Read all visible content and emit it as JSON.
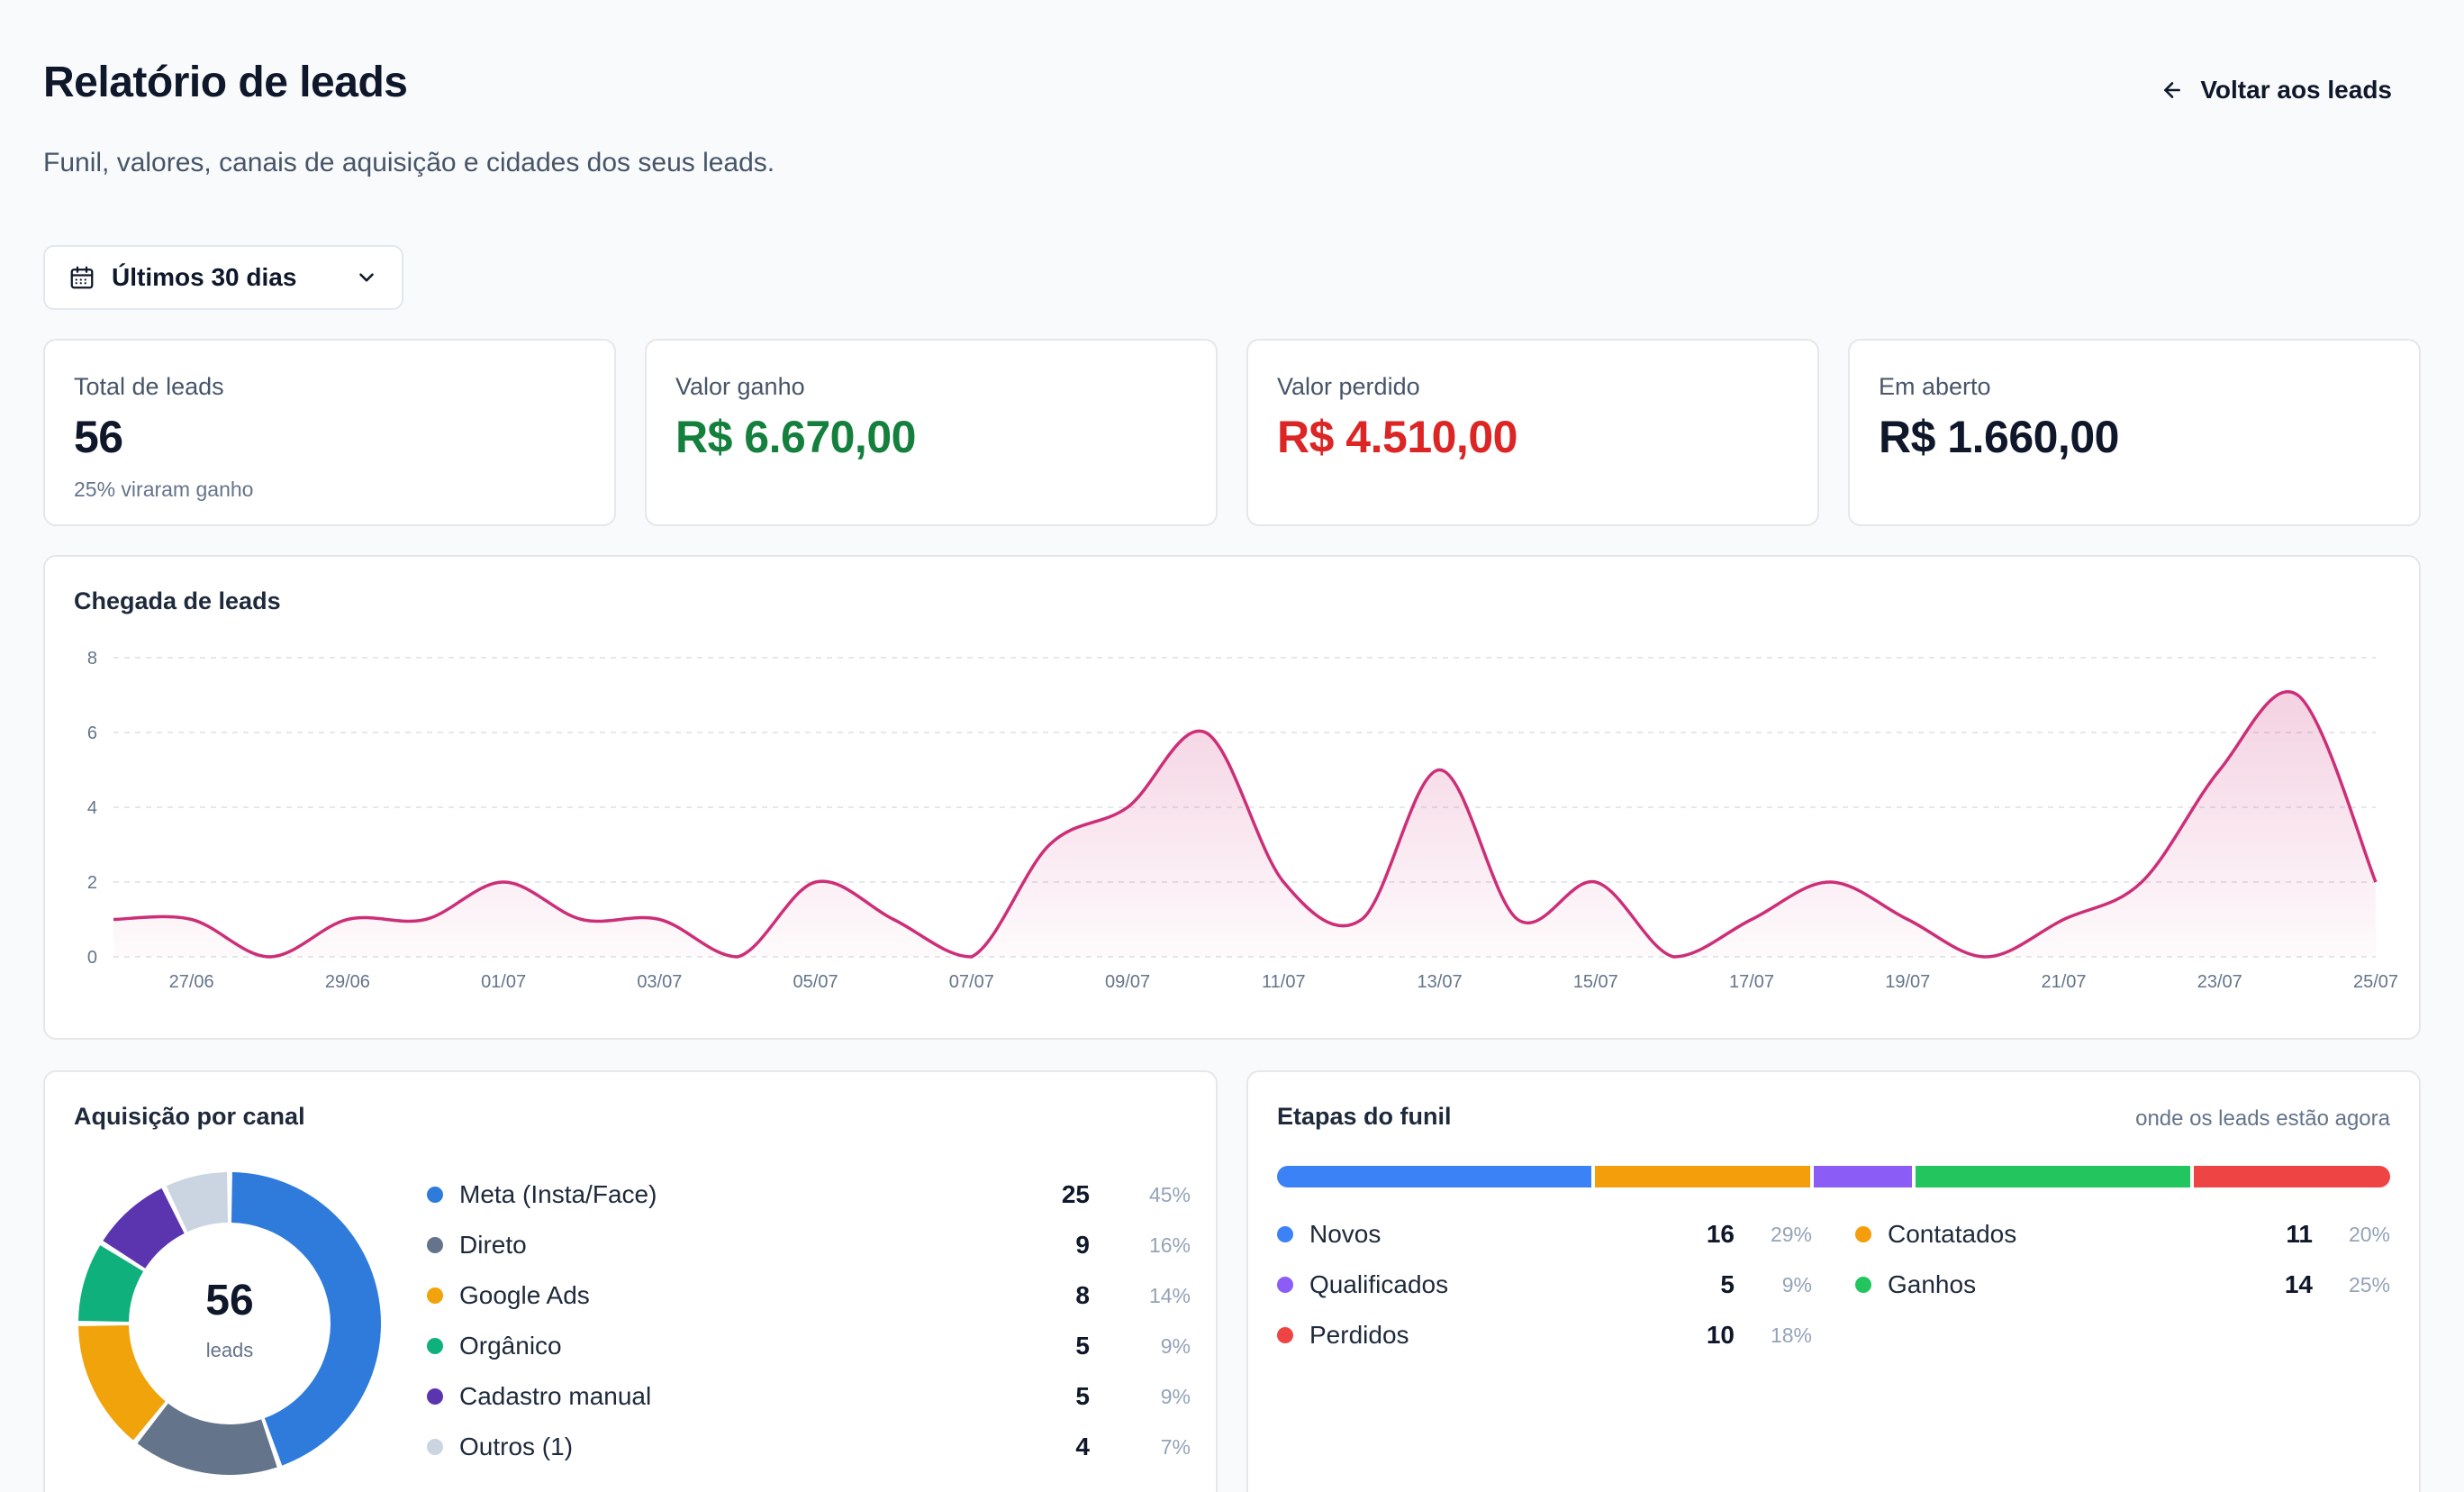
{
  "header": {
    "title": "Relatório de leads",
    "subtitle": "Funil, valores, canais de aquisição e cidades dos seus leads.",
    "back_label": "Voltar aos leads"
  },
  "filters": {
    "period_label": "Últimos 30 dias"
  },
  "kpis": [
    {
      "label": "Total de leads",
      "value": "56",
      "note": "25% viraram ganho",
      "color": "#0f172a"
    },
    {
      "label": "Valor ganho",
      "value": "R$ 6.670,00",
      "color": "#15803d"
    },
    {
      "label": "Valor perdido",
      "value": "R$ 4.510,00",
      "color": "#dc2626"
    },
    {
      "label": "Em aberto",
      "value": "R$ 1.660,00",
      "color": "#0f172a"
    }
  ],
  "arrivals": {
    "title": "Chegada de leads",
    "chart_data": {
      "type": "area",
      "x": [
        "26/06",
        "27/06",
        "28/06",
        "29/06",
        "30/06",
        "01/07",
        "02/07",
        "03/07",
        "04/07",
        "05/07",
        "06/07",
        "07/07",
        "08/07",
        "09/07",
        "10/07",
        "11/07",
        "12/07",
        "13/07",
        "14/07",
        "15/07",
        "16/07",
        "17/07",
        "18/07",
        "19/07",
        "20/07",
        "21/07",
        "22/07",
        "23/07",
        "24/07",
        "25/07"
      ],
      "values": [
        1,
        1,
        0,
        1,
        1,
        2,
        1,
        1,
        0,
        2,
        1,
        0,
        3,
        4,
        6,
        2,
        1,
        5,
        1,
        2,
        0,
        1,
        2,
        1,
        0,
        1,
        2,
        5,
        7,
        2
      ],
      "x_tick_labels": [
        "27/06",
        "29/06",
        "01/07",
        "03/07",
        "05/07",
        "07/07",
        "09/07",
        "11/07",
        "13/07",
        "15/07",
        "17/07",
        "19/07",
        "21/07",
        "23/07",
        "25/07"
      ],
      "y_ticks": [
        0,
        2,
        4,
        6,
        8
      ],
      "ylim": [
        0,
        8
      ],
      "grid": true,
      "line_color": "#cc2f78"
    }
  },
  "channels": {
    "title": "Aquisição por canal",
    "total": "56",
    "total_unit": "leads",
    "items": [
      {
        "name": "Meta (Insta/Face)",
        "count": "25",
        "pct": "45%",
        "color": "#2f7bdc"
      },
      {
        "name": "Direto",
        "count": "9",
        "pct": "16%",
        "color": "#64748b"
      },
      {
        "name": "Google Ads",
        "count": "8",
        "pct": "14%",
        "color": "#f0a30a"
      },
      {
        "name": "Orgânico",
        "count": "5",
        "pct": "9%",
        "color": "#10b07c"
      },
      {
        "name": "Cadastro manual",
        "count": "5",
        "pct": "9%",
        "color": "#5b35b0"
      },
      {
        "name": "Outros (1)",
        "count": "4",
        "pct": "7%",
        "color": "#cbd5e1"
      }
    ]
  },
  "funnel": {
    "title": "Etapas do funil",
    "hint": "onde os leads estão agora",
    "stages": [
      {
        "name": "Novos",
        "count": "16",
        "pct": "29%",
        "value": 16,
        "color": "#3b82f6"
      },
      {
        "name": "Contatados",
        "count": "11",
        "pct": "20%",
        "value": 11,
        "color": "#f59e0b"
      },
      {
        "name": "Qualificados",
        "count": "5",
        "pct": "9%",
        "value": 5,
        "color": "#8b5cf6"
      },
      {
        "name": "Ganhos",
        "count": "14",
        "pct": "25%",
        "value": 14,
        "color": "#22c55e"
      },
      {
        "name": "Perdidos",
        "count": "10",
        "pct": "18%",
        "value": 10,
        "color": "#ef4444"
      }
    ]
  }
}
